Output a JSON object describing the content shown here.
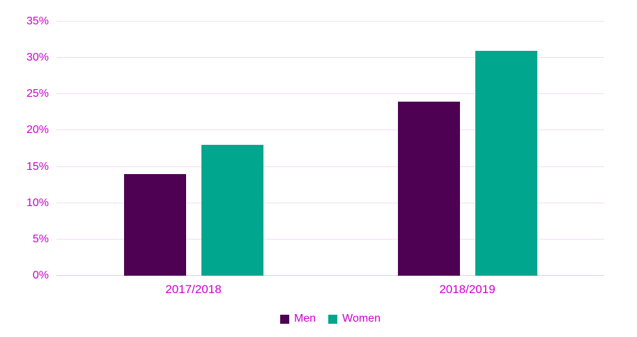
{
  "chart_data": {
    "type": "bar",
    "title": "",
    "categories": [
      "2017/2018",
      "2018/2019"
    ],
    "series": [
      {
        "name": "Men",
        "values": [
          14,
          24
        ],
        "color": "#4E0153"
      },
      {
        "name": "Women",
        "values": [
          18,
          31
        ],
        "color": "#00A78E"
      }
    ],
    "xlabel": "",
    "ylabel": "",
    "ylim": [
      0,
      35
    ],
    "ytick_step": 5,
    "ytick_suffix": "%",
    "ytick_labels": [
      "0%",
      "5%",
      "10%",
      "15%",
      "20%",
      "25%",
      "30%",
      "35%"
    ],
    "grid": true,
    "legend_position": "bottom-center"
  },
  "colors": {
    "axis_text": "#CC00CC",
    "gridline": "#F1DBF1",
    "axis_line": "#E7C9E7",
    "men_bar": "#4E0153",
    "women_bar": "#00A78E",
    "background": "#FFFFFF"
  }
}
